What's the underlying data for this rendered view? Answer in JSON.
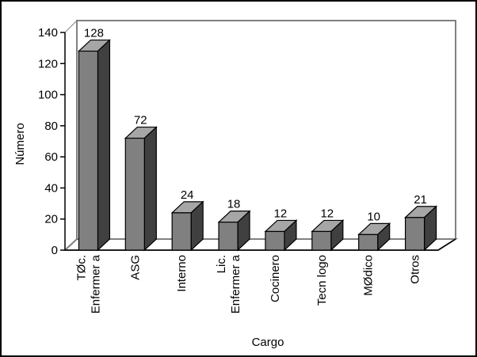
{
  "chart_data": {
    "type": "bar3d",
    "x_label": "Cargo",
    "y_label": "Número",
    "categories": [
      "TØc.\nEnfermer a",
      "ASG",
      "Interno",
      "Lic.\nEnfermer a",
      "Cocinero",
      "Tecn logo",
      "MØdico",
      "Otros"
    ],
    "values": [
      128,
      72,
      24,
      18,
      12,
      12,
      10,
      21
    ],
    "color": "#808080",
    "ylim": [
      0,
      140
    ],
    "yticks": [
      0,
      20,
      40,
      60,
      80,
      100,
      120,
      140
    ]
  }
}
